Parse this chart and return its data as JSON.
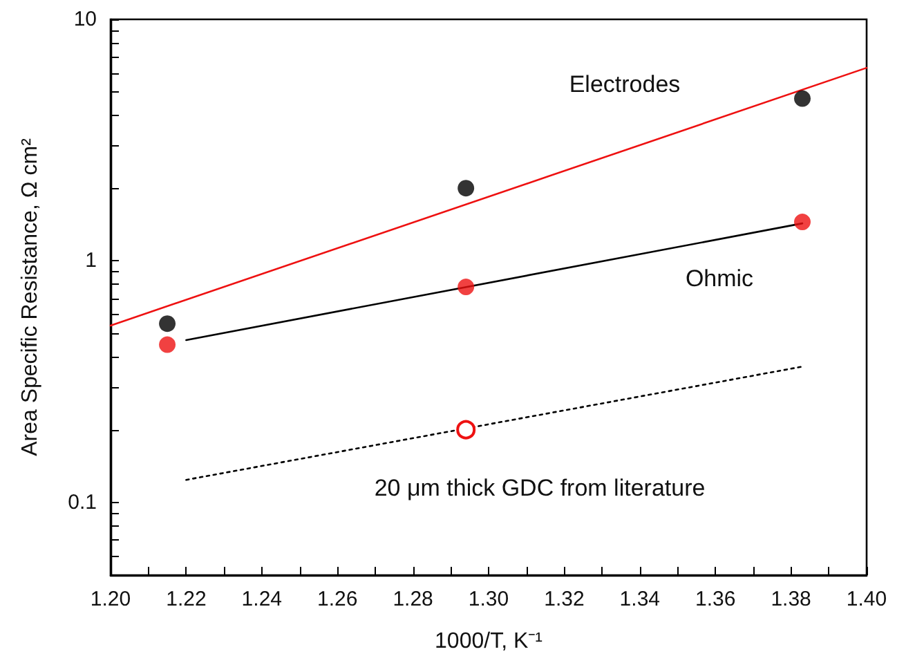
{
  "chart_data": {
    "type": "scatter",
    "xlabel": "1000/T, K⁻¹",
    "ylabel": "Area Specific Resistance, Ω cm²",
    "series": [
      {
        "color": "#000000",
        "marker": "circle",
        "x": [
          1.215,
          1.294,
          1.383
        ],
        "values": [
          0.55,
          2.0,
          4.7
        ]
      },
      {
        "color": "#ee1111",
        "marker": "circle",
        "x": [
          1.215,
          1.294,
          1.383
        ],
        "values": [
          0.45,
          0.78,
          1.45
        ]
      },
      {
        "type": "line",
        "color": "#ee1111",
        "marker": "circle",
        "x": [
          1.294
        ],
        "values": [
          0.2
        ]
      },
      {
        "type": "line",
        "name": "Electrodes",
        "color": "#ee1111",
        "marker": "none",
        "line_style": "solid",
        "x": [
          1.2,
          1.4
        ],
        "values": [
          0.54,
          6.3
        ]
      },
      {
        "type": "line",
        "name": "Ohmic",
        "color": "#000000",
        "marker": "none",
        "line_style": "solid",
        "x": [
          1.22,
          1.383
        ],
        "values": [
          0.47,
          1.43
        ]
      },
      {
        "type": "line",
        "name": "20 μm thick GDC from literature",
        "color": "#000000",
        "marker": "none",
        "line_style": "dotted",
        "x": [
          1.22,
          1.383
        ],
        "values": [
          0.124,
          0.365
        ]
      }
    ],
    "log": "y",
    "xlim": [
      1.2,
      1.4
    ],
    "xticks": [
      {
        "value": 1.2,
        "label": "1.20"
      },
      {
        "value": 1.21,
        "label": null
      },
      {
        "value": 1.22,
        "label": "1.22"
      },
      {
        "value": 1.23,
        "label": null
      },
      {
        "value": 1.24,
        "label": "1.24"
      },
      {
        "value": 1.25,
        "label": null
      },
      {
        "value": 1.26,
        "label": "1.26"
      },
      {
        "value": 1.27,
        "label": null
      },
      {
        "value": 1.28,
        "label": "1.28"
      },
      {
        "value": 1.29,
        "label": null
      },
      {
        "value": 1.3,
        "label": "1.30"
      },
      {
        "value": 1.31,
        "label": null
      },
      {
        "value": 1.32,
        "label": "1.32"
      },
      {
        "value": 1.33,
        "label": null
      },
      {
        "value": 1.34,
        "label": "1.34"
      },
      {
        "value": 1.35,
        "label": null
      },
      {
        "value": 1.36,
        "label": "1.36"
      },
      {
        "value": 1.37,
        "label": null
      },
      {
        "value": 1.38,
        "label": "1.38"
      },
      {
        "value": 1.39,
        "label": null
      },
      {
        "value": 1.4,
        "label": "1.40"
      }
    ],
    "ylim": [
      0.05,
      10
    ],
    "yticks": [
      {
        "value": 0.06,
        "label": null
      },
      {
        "value": 0.07,
        "label": null
      },
      {
        "value": 0.08,
        "label": null
      },
      {
        "value": 0.09,
        "label": null
      },
      0.1,
      {
        "value": 0.2,
        "label": null
      },
      {
        "value": 0.3,
        "label": null
      },
      {
        "value": 0.4,
        "label": null
      },
      {
        "value": 0.5,
        "label": null
      },
      {
        "value": 0.6,
        "label": null
      },
      {
        "value": 0.7,
        "label": null
      },
      {
        "value": 0.8,
        "label": null
      },
      {
        "value": 0.9,
        "label": null
      },
      1,
      {
        "value": 2,
        "label": null
      },
      {
        "value": 3,
        "label": null
      },
      {
        "value": 4,
        "label": null
      },
      {
        "value": 5,
        "label": null
      },
      {
        "value": 6,
        "label": null
      },
      {
        "value": 7,
        "label": null
      },
      {
        "value": 8,
        "label": null
      },
      {
        "value": 9,
        "label": null
      },
      10
    ],
    "grid": false,
    "legend": false
  }
}
